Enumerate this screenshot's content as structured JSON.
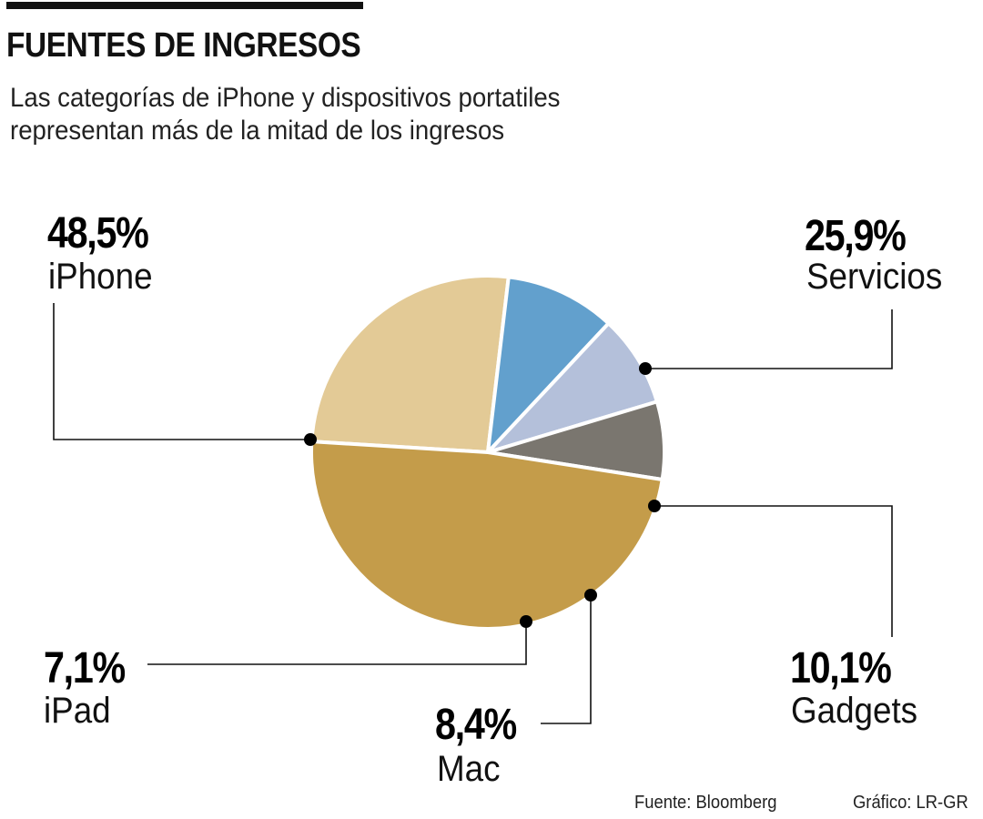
{
  "header": {
    "title": "FUENTES DE INGRESOS",
    "subtitle": "Las categorías de iPhone y dispositivos portatiles representan más de la mitad de los ingresos"
  },
  "chart_data": {
    "type": "pie",
    "title": "FUENTES DE INGRESOS",
    "subtitle": "Las categorías de iPhone y dispositivos portatiles representan más de la mitad de los ingresos",
    "slices": [
      {
        "label": "Servicios",
        "value": 25.9,
        "display": "25,9%",
        "color": "#E3CA96"
      },
      {
        "label": "Gadgets",
        "value": 10.1,
        "display": "10,1%",
        "color": "#62A0CD"
      },
      {
        "label": "Mac",
        "value": 8.4,
        "display": "8,4%",
        "color": "#B4C0DA"
      },
      {
        "label": "iPad",
        "value": 7.1,
        "display": "7,1%",
        "color": "#7A766F"
      },
      {
        "label": "iPhone",
        "value": 48.5,
        "display": "48,5%",
        "color": "#C49C4A"
      }
    ]
  },
  "footer": {
    "source": "Fuente: Bloomberg",
    "credit": "Gráfico: LR-GR"
  }
}
